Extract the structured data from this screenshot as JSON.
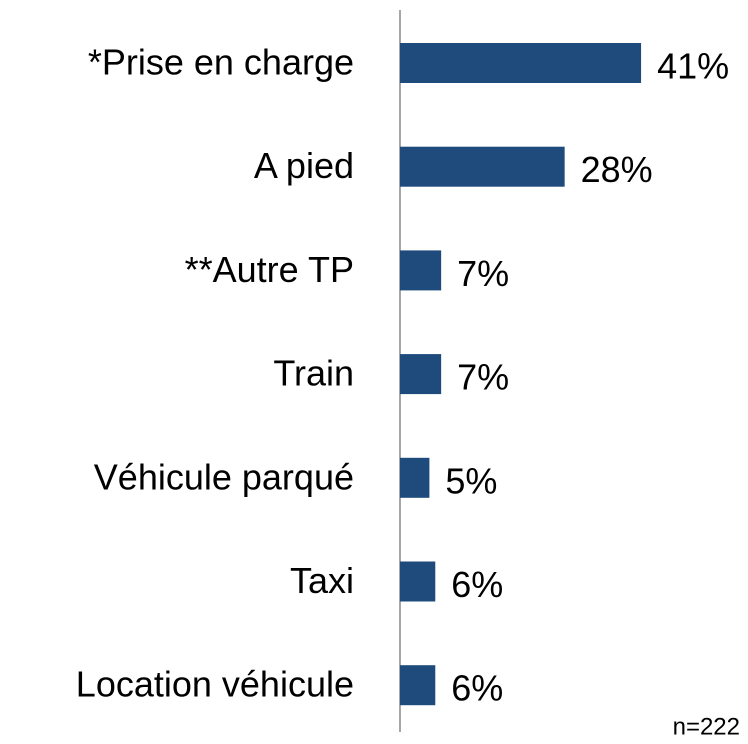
{
  "chart_data": {
    "type": "bar",
    "orientation": "horizontal",
    "categories": [
      "*Prise en charge",
      "A pied",
      "**Autre TP",
      "Train",
      "Véhicule parqué",
      "Taxi",
      "Location véhicule"
    ],
    "values": [
      41,
      28,
      7,
      7,
      5,
      6,
      6
    ],
    "value_labels": [
      "41%",
      "28%",
      "7%",
      "7%",
      "5%",
      "6%",
      "6%"
    ],
    "color": "#1f4a7c",
    "annotation": "n=222"
  }
}
